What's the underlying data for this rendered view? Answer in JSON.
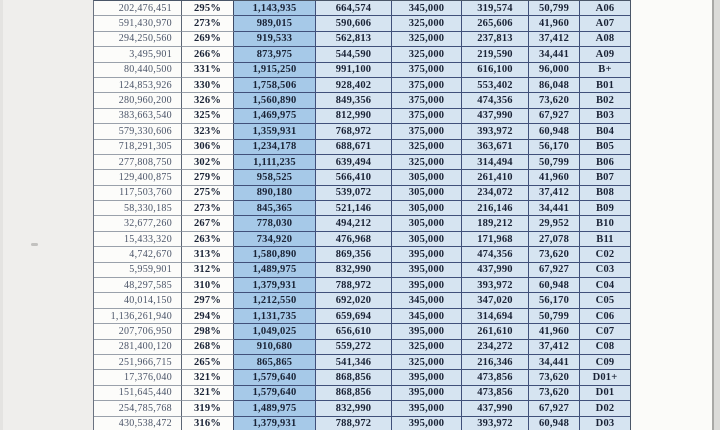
{
  "document": {
    "kind": "scanned-financial-table",
    "visible_header": null
  },
  "colors": {
    "page_background": "#efeeec",
    "paper_white": "#fbfbf9",
    "highlight_blue": "#a6c9e8",
    "pale_blue": "#d6e4f1",
    "grid_dark": "#40507a",
    "grid_light": "#9aa1ab",
    "text_dark": "#1a2336",
    "text_muted": "#4a5468"
  },
  "table": {
    "rows": [
      [
        "202,476,451",
        "295%",
        "1,143,935",
        "664,574",
        "345,000",
        "319,574",
        "50,799",
        "A06"
      ],
      [
        "591,430,970",
        "273%",
        "989,015",
        "590,606",
        "325,000",
        "265,606",
        "41,960",
        "A07"
      ],
      [
        "294,250,560",
        "269%",
        "919,533",
        "562,813",
        "325,000",
        "237,813",
        "37,412",
        "A08"
      ],
      [
        "3,495,901",
        "266%",
        "873,975",
        "544,590",
        "325,000",
        "219,590",
        "34,441",
        "A09"
      ],
      [
        "80,440,500",
        "331%",
        "1,915,250",
        "991,100",
        "375,000",
        "616,100",
        "96,000",
        "B+"
      ],
      [
        "124,853,926",
        "330%",
        "1,758,506",
        "928,402",
        "375,000",
        "553,402",
        "86,048",
        "B01"
      ],
      [
        "280,960,200",
        "326%",
        "1,560,890",
        "849,356",
        "375,000",
        "474,356",
        "73,620",
        "B02"
      ],
      [
        "383,663,540",
        "325%",
        "1,469,975",
        "812,990",
        "375,000",
        "437,990",
        "67,927",
        "B03"
      ],
      [
        "579,330,606",
        "323%",
        "1,359,931",
        "768,972",
        "375,000",
        "393,972",
        "60,948",
        "B04"
      ],
      [
        "718,291,305",
        "306%",
        "1,234,178",
        "688,671",
        "325,000",
        "363,671",
        "56,170",
        "B05"
      ],
      [
        "277,808,750",
        "302%",
        "1,111,235",
        "639,494",
        "325,000",
        "314,494",
        "50,799",
        "B06"
      ],
      [
        "129,400,875",
        "279%",
        "958,525",
        "566,410",
        "305,000",
        "261,410",
        "41,960",
        "B07"
      ],
      [
        "117,503,760",
        "275%",
        "890,180",
        "539,072",
        "305,000",
        "234,072",
        "37,412",
        "B08"
      ],
      [
        "58,330,185",
        "273%",
        "845,365",
        "521,146",
        "305,000",
        "216,146",
        "34,441",
        "B09"
      ],
      [
        "32,677,260",
        "267%",
        "778,030",
        "494,212",
        "305,000",
        "189,212",
        "29,952",
        "B10"
      ],
      [
        "15,433,320",
        "263%",
        "734,920",
        "476,968",
        "305,000",
        "171,968",
        "27,078",
        "B11"
      ],
      [
        "4,742,670",
        "313%",
        "1,580,890",
        "869,356",
        "395,000",
        "474,356",
        "73,620",
        "C02"
      ],
      [
        "5,959,901",
        "312%",
        "1,489,975",
        "832,990",
        "395,000",
        "437,990",
        "67,927",
        "C03"
      ],
      [
        "48,297,585",
        "310%",
        "1,379,931",
        "788,972",
        "395,000",
        "393,972",
        "60,948",
        "C04"
      ],
      [
        "40,014,150",
        "297%",
        "1,212,550",
        "692,020",
        "345,000",
        "347,020",
        "56,170",
        "C05"
      ],
      [
        "1,136,261,940",
        "294%",
        "1,131,735",
        "659,694",
        "345,000",
        "314,694",
        "50,799",
        "C06"
      ],
      [
        "207,706,950",
        "298%",
        "1,049,025",
        "656,610",
        "395,000",
        "261,610",
        "41,960",
        "C07"
      ],
      [
        "281,400,120",
        "268%",
        "910,680",
        "559,272",
        "325,000",
        "234,272",
        "37,412",
        "C08"
      ],
      [
        "251,966,715",
        "265%",
        "865,865",
        "541,346",
        "325,000",
        "216,346",
        "34,441",
        "C09"
      ],
      [
        "17,376,040",
        "321%",
        "1,579,640",
        "868,856",
        "395,000",
        "473,856",
        "73,620",
        "D01+"
      ],
      [
        "151,645,440",
        "321%",
        "1,579,640",
        "868,856",
        "395,000",
        "473,856",
        "73,620",
        "D01"
      ],
      [
        "254,785,768",
        "319%",
        "1,489,975",
        "832,990",
        "395,000",
        "437,990",
        "67,927",
        "D02"
      ],
      [
        "430,538,472",
        "316%",
        "1,379,931",
        "788,972",
        "395,000",
        "393,972",
        "60,948",
        "D03"
      ]
    ]
  }
}
